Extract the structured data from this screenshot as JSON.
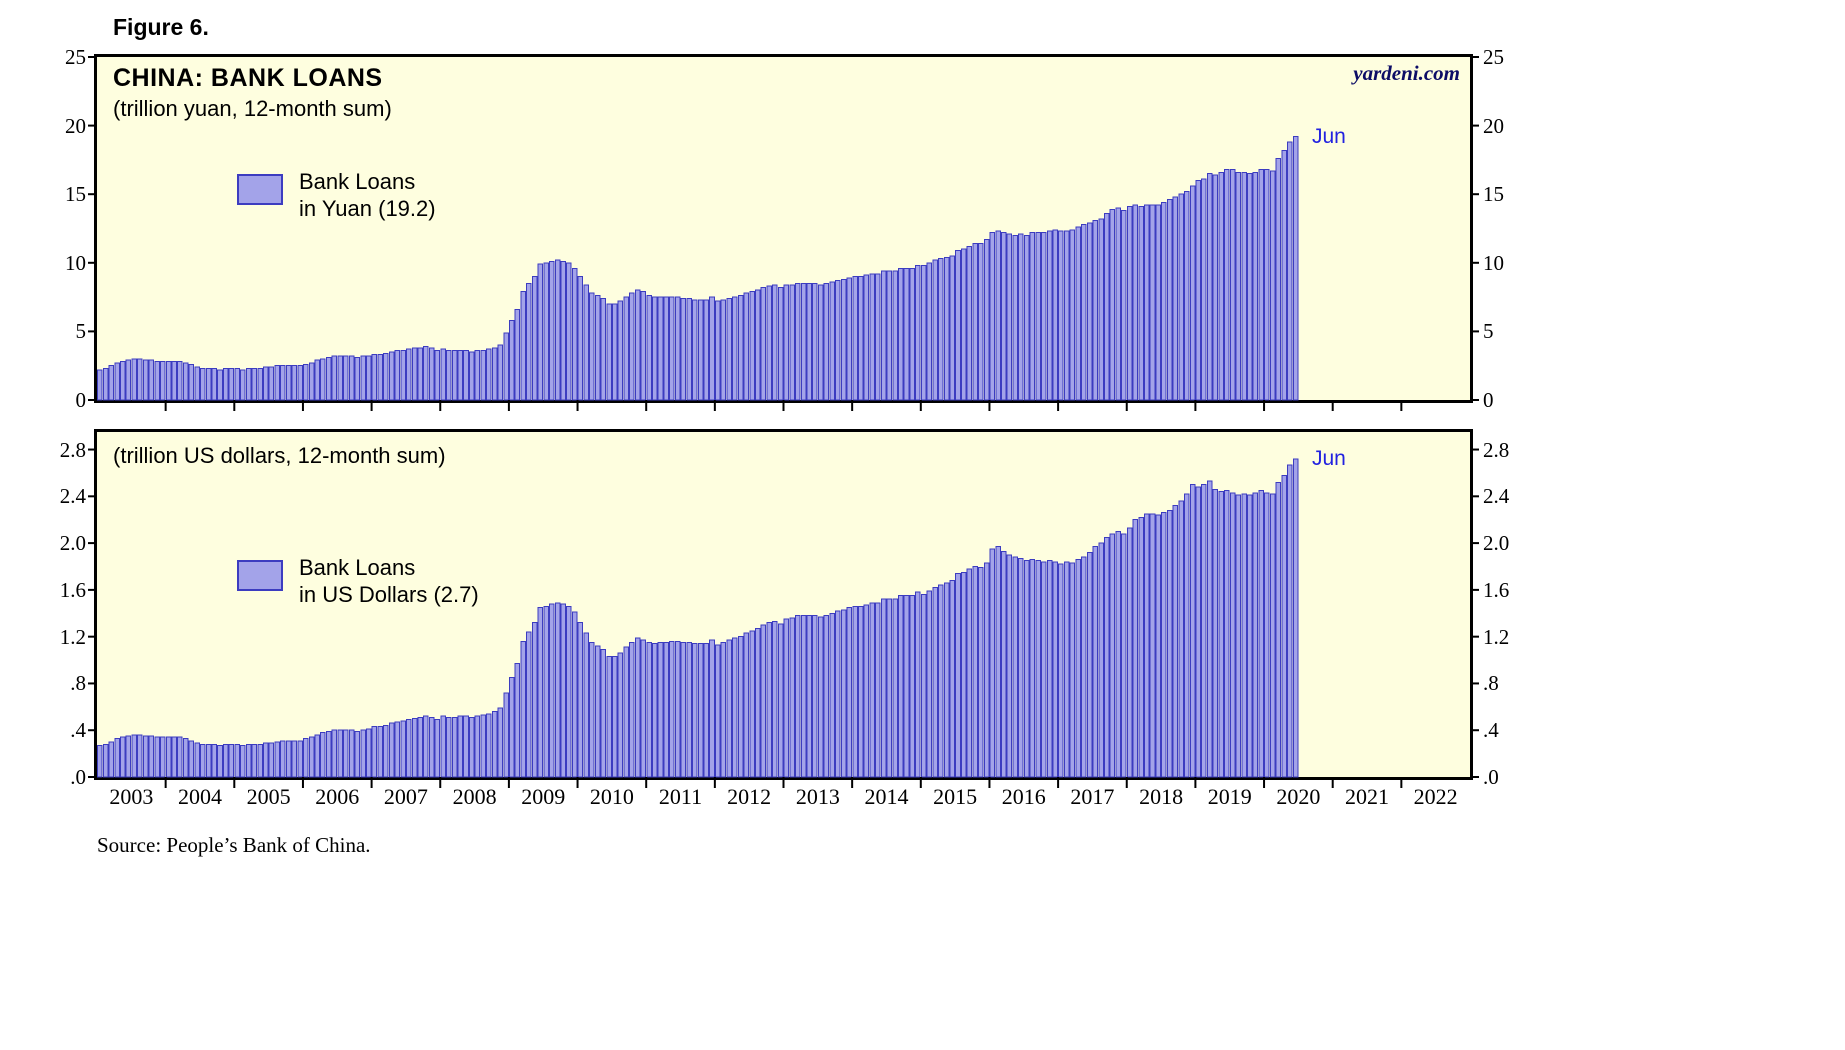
{
  "figure_label": "Figure 6.",
  "watermark": "yardeni.com",
  "source": "Source: People’s Bank of China.",
  "colors": {
    "page_bg": "#FFFFFF",
    "plot_bg": "#FEFEDF",
    "bar_fill": "#A3A3E9",
    "bar_stroke": "#3C3CC0",
    "annotation_blue": "#2222E0",
    "watermark_navy": "#0d0d66",
    "axis_black": "#000000"
  },
  "x_axis": {
    "years": [
      "2003",
      "2004",
      "2005",
      "2006",
      "2007",
      "2008",
      "2009",
      "2010",
      "2011",
      "2012",
      "2013",
      "2014",
      "2015",
      "2016",
      "2017",
      "2018",
      "2019",
      "2020",
      "2021",
      "2022"
    ]
  },
  "panels": [
    {
      "title": "CHINA: BANK LOANS",
      "subtitle": "(trillion yuan, 12-month sum)",
      "legend": [
        "Bank Loans",
        "in Yuan (19.2)"
      ],
      "last_point_label": "Jun"
    },
    {
      "subtitle": "(trillion US dollars, 12-month sum)",
      "legend": [
        "Bank Loans",
        "in US Dollars (2.7)"
      ],
      "last_point_label": "Jun"
    }
  ],
  "chart_data": [
    {
      "type": "bar",
      "title": "CHINA: BANK LOANS (trillion yuan, 12-month sum)",
      "series_name": "Bank Loans in Yuan",
      "latest_value": 19.2,
      "latest_label": "Jun 2020",
      "frequency": "monthly",
      "x_start_year": 2003,
      "x_end_year": 2023,
      "ylim": [
        0,
        25
      ],
      "grid": false,
      "legend_position": "upper-left-inside",
      "yticks": [
        {
          "v": 0,
          "label": "0"
        },
        {
          "v": 5,
          "label": "5"
        },
        {
          "v": 10,
          "label": "10"
        },
        {
          "v": 15,
          "label": "15"
        },
        {
          "v": 20,
          "label": "20"
        },
        {
          "v": 25,
          "label": "25"
        }
      ],
      "values": [
        2.2,
        2.3,
        2.5,
        2.7,
        2.8,
        2.9,
        3.0,
        3.0,
        2.9,
        2.9,
        2.8,
        2.8,
        2.8,
        2.8,
        2.8,
        2.7,
        2.6,
        2.4,
        2.3,
        2.3,
        2.3,
        2.2,
        2.3,
        2.3,
        2.3,
        2.2,
        2.3,
        2.3,
        2.3,
        2.4,
        2.4,
        2.5,
        2.5,
        2.5,
        2.5,
        2.5,
        2.6,
        2.7,
        2.9,
        3.0,
        3.1,
        3.2,
        3.2,
        3.2,
        3.2,
        3.1,
        3.2,
        3.2,
        3.3,
        3.3,
        3.4,
        3.5,
        3.6,
        3.6,
        3.7,
        3.8,
        3.8,
        3.9,
        3.8,
        3.6,
        3.7,
        3.6,
        3.6,
        3.6,
        3.6,
        3.5,
        3.6,
        3.6,
        3.7,
        3.8,
        4.0,
        4.9,
        5.8,
        6.6,
        7.9,
        8.5,
        9.0,
        9.9,
        10.0,
        10.1,
        10.2,
        10.1,
        10.0,
        9.6,
        9.0,
        8.4,
        7.8,
        7.6,
        7.4,
        7.0,
        7.0,
        7.2,
        7.5,
        7.8,
        8.0,
        7.9,
        7.6,
        7.5,
        7.5,
        7.5,
        7.5,
        7.5,
        7.4,
        7.4,
        7.3,
        7.3,
        7.3,
        7.5,
        7.2,
        7.3,
        7.4,
        7.5,
        7.6,
        7.8,
        7.9,
        8.0,
        8.2,
        8.3,
        8.4,
        8.2,
        8.4,
        8.4,
        8.5,
        8.5,
        8.5,
        8.5,
        8.4,
        8.5,
        8.6,
        8.7,
        8.8,
        8.9,
        9.0,
        9.0,
        9.1,
        9.2,
        9.2,
        9.4,
        9.4,
        9.4,
        9.6,
        9.6,
        9.6,
        9.8,
        9.8,
        10.0,
        10.2,
        10.3,
        10.4,
        10.5,
        10.9,
        11.0,
        11.2,
        11.4,
        11.4,
        11.7,
        12.2,
        12.3,
        12.2,
        12.1,
        12.0,
        12.1,
        12.0,
        12.2,
        12.2,
        12.2,
        12.3,
        12.4,
        12.3,
        12.3,
        12.4,
        12.6,
        12.8,
        12.9,
        13.1,
        13.2,
        13.6,
        13.9,
        14.0,
        13.8,
        14.1,
        14.2,
        14.1,
        14.2,
        14.2,
        14.2,
        14.4,
        14.6,
        14.8,
        15.0,
        15.2,
        15.6,
        16.0,
        16.1,
        16.5,
        16.4,
        16.6,
        16.8,
        16.8,
        16.6,
        16.6,
        16.5,
        16.6,
        16.8,
        16.8,
        16.7,
        17.6,
        18.2,
        18.8,
        19.2
      ]
    },
    {
      "type": "bar",
      "title": "CHINA: BANK LOANS (trillion US dollars, 12-month sum)",
      "series_name": "Bank Loans in US Dollars",
      "latest_value": 2.7,
      "latest_label": "Jun 2020",
      "frequency": "monthly",
      "x_start_year": 2003,
      "x_end_year": 2023,
      "ylim": [
        0,
        2.95
      ],
      "grid": false,
      "legend_position": "upper-left-inside",
      "yticks": [
        {
          "v": 0,
          "label": ".0"
        },
        {
          "v": 0.4,
          "label": ".4"
        },
        {
          "v": 0.8,
          "label": ".8"
        },
        {
          "v": 1.2,
          "label": "1.2"
        },
        {
          "v": 1.6,
          "label": "1.6"
        },
        {
          "v": 2.0,
          "label": "2.0"
        },
        {
          "v": 2.4,
          "label": "2.4"
        },
        {
          "v": 2.8,
          "label": "2.8"
        }
      ],
      "values": [
        0.27,
        0.28,
        0.3,
        0.33,
        0.34,
        0.35,
        0.36,
        0.36,
        0.35,
        0.35,
        0.34,
        0.34,
        0.34,
        0.34,
        0.34,
        0.33,
        0.31,
        0.29,
        0.28,
        0.28,
        0.28,
        0.27,
        0.28,
        0.28,
        0.28,
        0.27,
        0.28,
        0.28,
        0.28,
        0.29,
        0.29,
        0.3,
        0.31,
        0.31,
        0.31,
        0.31,
        0.33,
        0.34,
        0.36,
        0.38,
        0.39,
        0.4,
        0.4,
        0.4,
        0.4,
        0.39,
        0.4,
        0.41,
        0.43,
        0.43,
        0.44,
        0.46,
        0.47,
        0.48,
        0.49,
        0.5,
        0.51,
        0.52,
        0.51,
        0.49,
        0.52,
        0.51,
        0.51,
        0.52,
        0.52,
        0.51,
        0.52,
        0.53,
        0.54,
        0.56,
        0.59,
        0.72,
        0.85,
        0.97,
        1.16,
        1.24,
        1.32,
        1.45,
        1.46,
        1.48,
        1.49,
        1.48,
        1.46,
        1.41,
        1.32,
        1.23,
        1.15,
        1.12,
        1.09,
        1.03,
        1.03,
        1.06,
        1.11,
        1.15,
        1.19,
        1.17,
        1.15,
        1.14,
        1.15,
        1.15,
        1.16,
        1.16,
        1.15,
        1.15,
        1.14,
        1.14,
        1.14,
        1.17,
        1.13,
        1.15,
        1.17,
        1.19,
        1.2,
        1.23,
        1.25,
        1.27,
        1.3,
        1.32,
        1.33,
        1.31,
        1.35,
        1.36,
        1.38,
        1.38,
        1.38,
        1.38,
        1.37,
        1.38,
        1.4,
        1.42,
        1.43,
        1.45,
        1.46,
        1.46,
        1.47,
        1.49,
        1.49,
        1.52,
        1.52,
        1.52,
        1.55,
        1.55,
        1.55,
        1.58,
        1.56,
        1.59,
        1.62,
        1.64,
        1.66,
        1.68,
        1.74,
        1.75,
        1.78,
        1.8,
        1.79,
        1.83,
        1.95,
        1.97,
        1.93,
        1.9,
        1.88,
        1.87,
        1.85,
        1.86,
        1.85,
        1.84,
        1.85,
        1.84,
        1.82,
        1.84,
        1.83,
        1.86,
        1.88,
        1.92,
        1.97,
        2.0,
        2.05,
        2.08,
        2.1,
        2.08,
        2.13,
        2.2,
        2.22,
        2.25,
        2.25,
        2.24,
        2.26,
        2.28,
        2.32,
        2.36,
        2.42,
        2.5,
        2.48,
        2.5,
        2.53,
        2.46,
        2.44,
        2.45,
        2.43,
        2.41,
        2.42,
        2.41,
        2.43,
        2.45,
        2.43,
        2.42,
        2.52,
        2.58,
        2.67,
        2.72
      ]
    }
  ]
}
